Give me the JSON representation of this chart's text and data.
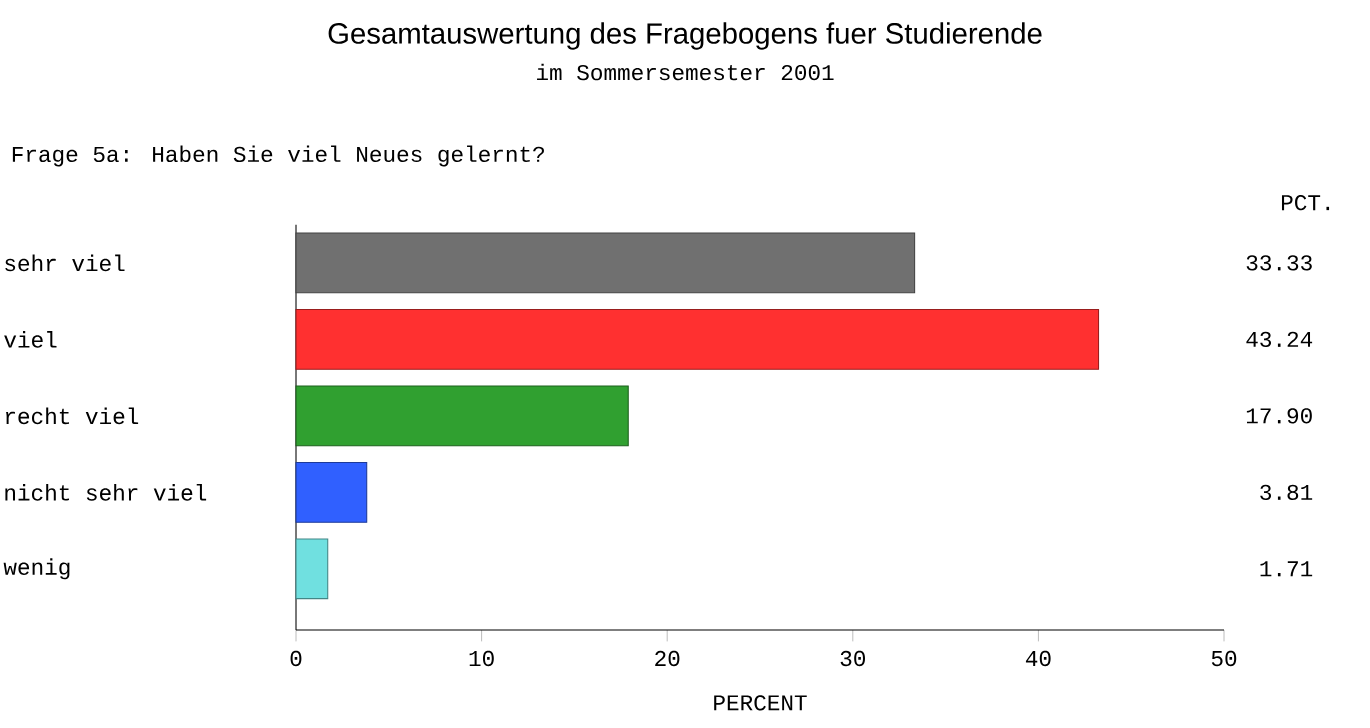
{
  "chart_data": {
    "type": "bar",
    "orientation": "horizontal",
    "title": "Gesamtauswertung des Fragebogens fuer Studierende",
    "subtitle": "im Sommersemester 2001",
    "annotations": [
      "Frage 5a: Haben Sie viel Neues gelernt?",
      "PCT."
    ],
    "categories": [
      "sehr viel",
      "viel",
      "recht viel",
      "nicht sehr viel",
      "wenig"
    ],
    "values": [
      33.33,
      43.24,
      17.9,
      3.81,
      1.71
    ],
    "colors": [
      "#707070",
      "#ff3030",
      "#30a030",
      "#3060ff",
      "#70e0e0"
    ],
    "data_labels": true,
    "value_labels": [
      "33.33",
      "43.24",
      "17.90",
      "3.81",
      "1.71"
    ],
    "xlabel": "PERCENT",
    "xlim": [
      0,
      50
    ],
    "xticks": [
      0,
      10,
      20,
      30,
      40,
      50
    ],
    "grid": false
  }
}
